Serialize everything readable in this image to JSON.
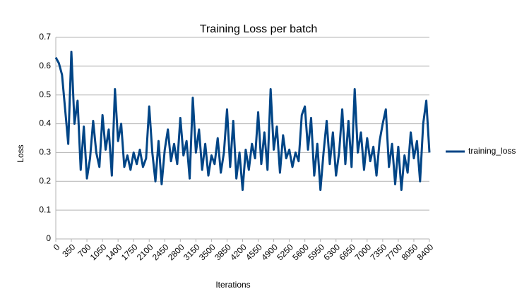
{
  "chart_data": {
    "type": "line",
    "title": "Training Loss per batch",
    "x_label": "Iterations",
    "y_label": "Loss",
    "x": [
      0,
      70,
      140,
      210,
      280,
      350,
      420,
      490,
      560,
      630,
      700,
      770,
      840,
      910,
      980,
      1050,
      1120,
      1190,
      1260,
      1330,
      1400,
      1470,
      1540,
      1610,
      1680,
      1750,
      1820,
      1890,
      1960,
      2030,
      2100,
      2170,
      2240,
      2310,
      2380,
      2450,
      2520,
      2590,
      2660,
      2730,
      2800,
      2870,
      2940,
      3010,
      3080,
      3150,
      3220,
      3290,
      3360,
      3430,
      3500,
      3570,
      3640,
      3710,
      3780,
      3850,
      3920,
      3990,
      4060,
      4130,
      4200,
      4270,
      4340,
      4410,
      4480,
      4550,
      4620,
      4690,
      4760,
      4830,
      4900,
      4970,
      5040,
      5110,
      5180,
      5250,
      5320,
      5390,
      5460,
      5530,
      5600,
      5670,
      5740,
      5810,
      5880,
      5950,
      6020,
      6090,
      6160,
      6230,
      6300,
      6370,
      6440,
      6510,
      6580,
      6650,
      6720,
      6790,
      6860,
      6930,
      7000,
      7070,
      7140,
      7210,
      7280,
      7350,
      7420,
      7490,
      7560,
      7630,
      7700,
      7770,
      7840,
      7910,
      7980,
      8050,
      8120,
      8190,
      8260,
      8330,
      8400
    ],
    "series": [
      {
        "name": "training_loss",
        "color": "#004586",
        "values": [
          0.63,
          0.61,
          0.57,
          0.45,
          0.33,
          0.65,
          0.4,
          0.48,
          0.24,
          0.39,
          0.21,
          0.28,
          0.41,
          0.3,
          0.25,
          0.43,
          0.31,
          0.38,
          0.22,
          0.52,
          0.34,
          0.4,
          0.25,
          0.29,
          0.24,
          0.3,
          0.26,
          0.31,
          0.25,
          0.28,
          0.46,
          0.3,
          0.2,
          0.34,
          0.19,
          0.31,
          0.38,
          0.27,
          0.33,
          0.26,
          0.42,
          0.29,
          0.34,
          0.21,
          0.49,
          0.3,
          0.38,
          0.24,
          0.33,
          0.22,
          0.29,
          0.26,
          0.35,
          0.23,
          0.3,
          0.45,
          0.25,
          0.41,
          0.21,
          0.3,
          0.17,
          0.31,
          0.24,
          0.33,
          0.28,
          0.44,
          0.26,
          0.37,
          0.24,
          0.52,
          0.31,
          0.39,
          0.23,
          0.36,
          0.28,
          0.31,
          0.25,
          0.3,
          0.27,
          0.43,
          0.46,
          0.31,
          0.42,
          0.22,
          0.33,
          0.17,
          0.3,
          0.41,
          0.26,
          0.37,
          0.22,
          0.3,
          0.45,
          0.26,
          0.41,
          0.25,
          0.52,
          0.3,
          0.37,
          0.24,
          0.35,
          0.27,
          0.32,
          0.22,
          0.34,
          0.4,
          0.45,
          0.25,
          0.33,
          0.19,
          0.32,
          0.17,
          0.29,
          0.23,
          0.37,
          0.28,
          0.34,
          0.2,
          0.4,
          0.48,
          0.3
        ]
      }
    ],
    "xlim": [
      0,
      8400
    ],
    "xticks": [
      0,
      350,
      700,
      1050,
      1400,
      1750,
      2100,
      2450,
      2800,
      3150,
      3500,
      3850,
      4200,
      4550,
      4900,
      5250,
      5600,
      5950,
      6300,
      6650,
      7000,
      7350,
      7700,
      8050,
      8400
    ],
    "ylim": [
      0,
      0.7
    ],
    "yticks": [
      0,
      0.1,
      0.2,
      0.3,
      0.4,
      0.5,
      0.6,
      0.7
    ],
    "grid": true,
    "legend": "right"
  }
}
